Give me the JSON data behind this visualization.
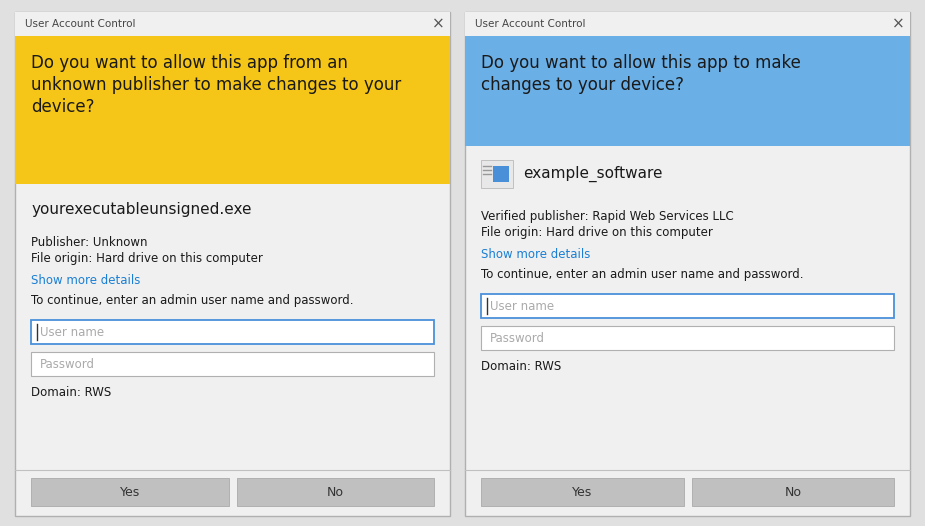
{
  "bg_color": "#e0e0e0",
  "outer_bg": "#d8d8d8",
  "dialog_bg": "#f0f0f0",
  "dialog_border": "#b0b0b0",
  "left_header_bg": "#f5c518",
  "right_header_bg": "#6aafe6",
  "header_title_color": "#1a1a1a",
  "title_bar_bg": "#f0f0f0",
  "title_bar_text": "User Account Control",
  "title_bar_text_color": "#444444",
  "close_btn_color": "#555555",
  "left_header_text_line1": "Do you want to allow this app from an",
  "left_header_text_line2": "unknown publisher to make changes to your",
  "left_header_text_line3": "device?",
  "right_header_text_line1": "Do you want to allow this app to make",
  "right_header_text_line2": "changes to your device?",
  "left_app_name": "yourexecutableunsigned.exe",
  "right_app_name": "example_software",
  "left_publisher_line1": "Publisher: Unknown",
  "left_publisher_line2": "File origin: Hard drive on this computer",
  "right_publisher_line1": "Verified publisher: Rapid Web Services LLC",
  "right_publisher_line2": "File origin: Hard drive on this computer",
  "show_more_details": "Show more details",
  "show_more_color": "#1a7fd4",
  "continue_text": "To continue, enter an admin user name and password.",
  "username_placeholder": "User name",
  "password_placeholder": "Password",
  "domain_text": "Domain: RWS",
  "yes_btn": "Yes",
  "no_btn": "No",
  "btn_bg": "#c0c0c0",
  "btn_text_color": "#333333",
  "input_border_active": "#4a90d9",
  "input_border_normal": "#b0b0b0",
  "input_bg": "#ffffff",
  "input_placeholder_color": "#aaaaaa",
  "app_name_color": "#1a1a1a",
  "body_text_color": "#1a1a1a",
  "icon_blue": "#4a90d9",
  "icon_bg": "#e8e8e8",
  "icon_border": "#b0b0b0",
  "separator_color": "#c0c0c0"
}
